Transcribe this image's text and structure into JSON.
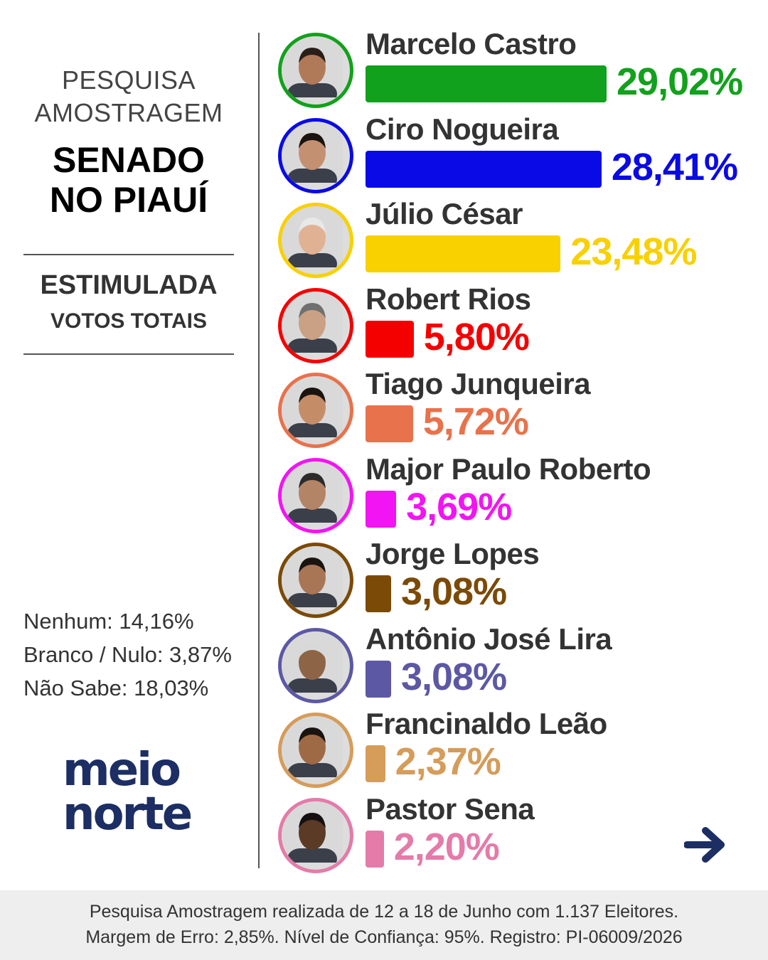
{
  "header": {
    "survey_line1": "PESQUISA",
    "survey_line2": "AMOSTRAGEM",
    "race_line1": "SENADO",
    "race_line2": "NO PIAUÍ",
    "type_main": "ESTIMULADA",
    "type_sub": "VOTOS TOTAIS"
  },
  "others": [
    "Nenhum: 14,16%",
    "Branco / Nulo: 3,87%",
    "Não Sabe:  18,03%"
  ],
  "logo": {
    "line1": "meio",
    "line2": "norte"
  },
  "footer": {
    "line1": "Pesquisa Amostragem realizada de 12 a 18 de Junho com 1.137 Eleitores.",
    "line2": "Margem de Erro: 2,85%. Nível de Confiança: 95%. Registro: PI-06009/2026"
  },
  "chart_data": {
    "type": "bar",
    "orientation": "horizontal",
    "categories": [
      "Marcelo Castro",
      "Ciro Nogueira",
      "Júlio César",
      "Robert Rios",
      "Tiago Junqueira",
      "Major Paulo Roberto",
      "Jorge Lopes",
      "Antônio José Lira",
      "Francinaldo Leão",
      "Pastor Sena"
    ],
    "values": [
      29.02,
      28.41,
      23.48,
      5.8,
      5.72,
      3.69,
      3.08,
      3.08,
      2.37,
      2.2
    ],
    "labels": [
      "29,02%",
      "28,41%",
      "23,48%",
      "5,80%",
      "5,72%",
      "3,69%",
      "3,08%",
      "3,08%",
      "2,37%",
      "2,20%"
    ],
    "colors": [
      "#12a11c",
      "#0a0ae6",
      "#f9d000",
      "#f50000",
      "#e8724b",
      "#f214f2",
      "#7b4a07",
      "#5d58a4",
      "#d59c5a",
      "#e47ba9"
    ],
    "skin_tones": [
      "#b07a58",
      "#c49072",
      "#e0b293",
      "#caa184",
      "#c58d67",
      "#b48466",
      "#a87555",
      "#8e6446",
      "#9e6a45",
      "#5b3a26"
    ],
    "hair_colors": [
      "#2a1e18",
      "#1a1410",
      "#e8e8e8",
      "#707070",
      "#1a1410",
      "#2b2b2b",
      "#1a1410",
      "#d8d8d8",
      "#1a1410",
      "#141010"
    ],
    "icons": [
      "arrow-right-icon"
    ]
  }
}
